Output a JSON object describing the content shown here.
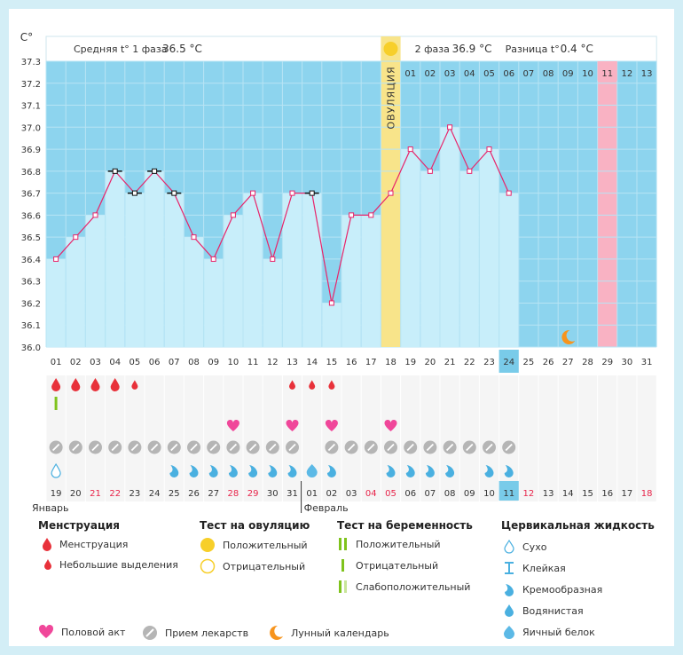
{
  "chart_data": {
    "type": "line",
    "ylabel": "C°",
    "ylim": [
      36.0,
      37.3
    ],
    "yticks": [
      "36.0",
      "36.1",
      "36.2",
      "36.3",
      "36.4",
      "36.5",
      "36.6",
      "36.7",
      "36.8",
      "36.9",
      "37.0",
      "37.1",
      "37.2",
      "37.3"
    ],
    "cycle_days": [
      "01",
      "02",
      "03",
      "04",
      "05",
      "06",
      "07",
      "08",
      "09",
      "10",
      "11",
      "12",
      "13",
      "14",
      "15",
      "16",
      "17",
      "18",
      "19",
      "20",
      "21",
      "22",
      "23",
      "24",
      "25",
      "26",
      "27",
      "28",
      "29",
      "30",
      "31"
    ],
    "temperatures": [
      36.4,
      36.5,
      36.6,
      36.8,
      36.7,
      36.8,
      36.7,
      36.5,
      36.4,
      36.6,
      36.7,
      36.4,
      36.7,
      36.7,
      36.2,
      36.6,
      36.6,
      36.7,
      36.9,
      36.8,
      37.0,
      36.8,
      36.9,
      36.7
    ],
    "marked_points": [
      4,
      5,
      6,
      7,
      14
    ],
    "ovulation_day": 18,
    "current_day": 24,
    "phase2_day_labels": [
      "01",
      "02",
      "03",
      "04",
      "05",
      "06",
      "07",
      "08",
      "09",
      "10",
      "11",
      "12",
      "13"
    ],
    "highlighted_phase2_index": 11,
    "phase1_label": "Средняя t° 1 фаза",
    "phase1_value": "36.5 °С",
    "phase2_label": "2 фаза",
    "phase2_value": "36.9 °С",
    "diff_label": "Разница t°",
    "diff_value": "0.4 °С",
    "ovulation_label": "ОВУЛЯЦИЯ",
    "calendar_dates": [
      "19",
      "20",
      "21",
      "22",
      "23",
      "24",
      "25",
      "26",
      "27",
      "28",
      "29",
      "30",
      "31",
      "01",
      "02",
      "03",
      "04",
      "05",
      "06",
      "07",
      "08",
      "09",
      "10",
      "11",
      "12",
      "13",
      "14",
      "15",
      "16",
      "17",
      "18"
    ],
    "red_date_indices": [
      2,
      3,
      9,
      10,
      16,
      17,
      24,
      30
    ],
    "month_labels": [
      "Январь",
      "Февраль"
    ],
    "menstruation": [
      "big",
      "big",
      "big",
      "big",
      "small",
      "",
      "",
      "",
      "",
      "",
      "",
      "",
      "small",
      "small",
      "small"
    ],
    "pregnancy_test_days": [
      1
    ],
    "intercourse_days": [
      10,
      13,
      15,
      18
    ],
    "medication_days": [
      1,
      2,
      3,
      4,
      5,
      6,
      7,
      8,
      9,
      10,
      11,
      12,
      13,
      15,
      16,
      17,
      18,
      19,
      20,
      21,
      22,
      23,
      24
    ],
    "cervical_fluid": [
      "dry",
      "",
      "",
      "",
      "",
      "",
      "creamy",
      "creamy",
      "creamy",
      "creamy",
      "creamy",
      "creamy",
      "creamy",
      "eggwhite",
      "creamy",
      "",
      "",
      "creamy",
      "creamy",
      "creamy",
      "creamy",
      "",
      "creamy",
      "creamy"
    ],
    "moon_day": 27
  },
  "colors": {
    "plot_bg": "#8dd4ee",
    "bar": "#c8eefa",
    "line": "#e8246a",
    "ovulation": "#f8e48a",
    "highlight": "#f9b2c3",
    "drop_red": "#e8313a",
    "heart": "#f0479a",
    "pill": "#b5b5b5",
    "fluid": "#4ab0e0",
    "moon": "#f7941d"
  },
  "legend": {
    "menstruation": {
      "title": "Менструация",
      "items": [
        "Менструация",
        "Небольшие выделения"
      ]
    },
    "ovulation_test": {
      "title": "Тест на овуляцию",
      "items": [
        "Положительный",
        "Отрицательный"
      ]
    },
    "pregnancy_test": {
      "title": "Тест на беременность",
      "items": [
        "Положительный",
        "Отрицательный",
        "Слабоположительный"
      ]
    },
    "cervical": {
      "title": "Цервикальная жидкость",
      "items": [
        "Сухо",
        "Клейкая",
        "Кремообразная",
        "Водянистая",
        "Яичный белок"
      ]
    },
    "bottom": [
      "Половой акт",
      "Прием лекарств",
      "Лунный календарь"
    ]
  }
}
